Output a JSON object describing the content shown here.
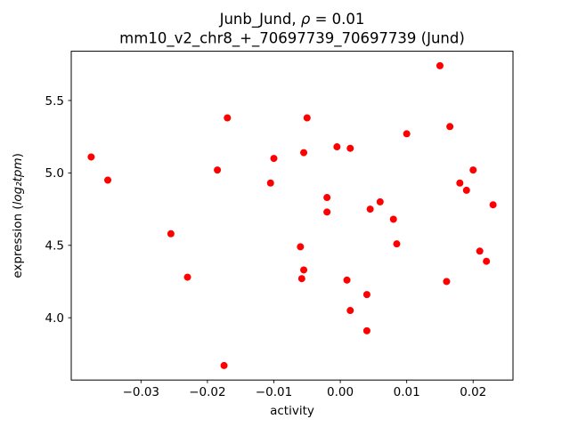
{
  "figure": {
    "title_parts": {
      "prefix": "Junb_Jund, ",
      "rho": "ρ",
      "rest": " = 0.01"
    },
    "ylabel_parts": {
      "prefix": "expression (",
      "math": "log₂tpm",
      "suffix": ")"
    }
  },
  "chart_data": {
    "type": "scatter",
    "title": "Junb_Jund, ρ = 0.01",
    "subtitle": "mm10_v2_chr8_+_70697739_70697739 (Jund)",
    "xlabel": "activity",
    "ylabel": "expression (log2tpm)",
    "marker_color": "#ff0000",
    "marker_size_px": 4,
    "grid": false,
    "legend": "none",
    "xlim": [
      -0.0405,
      0.026
    ],
    "ylim": [
      3.57,
      5.84
    ],
    "xticks": [
      -0.03,
      -0.02,
      -0.01,
      0.0,
      0.01,
      0.02
    ],
    "yticks": [
      4.0,
      4.5,
      5.0,
      5.5
    ],
    "points": [
      [
        -0.0375,
        5.11
      ],
      [
        -0.035,
        4.95
      ],
      [
        -0.0255,
        4.58
      ],
      [
        -0.023,
        4.28
      ],
      [
        -0.0185,
        5.02
      ],
      [
        -0.017,
        5.38
      ],
      [
        -0.0175,
        3.67
      ],
      [
        -0.01,
        5.1
      ],
      [
        -0.0105,
        4.93
      ],
      [
        -0.0055,
        5.14
      ],
      [
        -0.005,
        5.38
      ],
      [
        -0.006,
        4.49
      ],
      [
        -0.0055,
        4.33
      ],
      [
        -0.0058,
        4.27
      ],
      [
        -0.002,
        4.83
      ],
      [
        -0.002,
        4.73
      ],
      [
        -0.0005,
        5.18
      ],
      [
        0.0015,
        5.17
      ],
      [
        0.001,
        4.26
      ],
      [
        0.0015,
        4.05
      ],
      [
        0.004,
        4.16
      ],
      [
        0.004,
        3.91
      ],
      [
        0.0045,
        4.75
      ],
      [
        0.006,
        4.8
      ],
      [
        0.008,
        4.68
      ],
      [
        0.0085,
        4.51
      ],
      [
        0.01,
        5.27
      ],
      [
        0.015,
        5.74
      ],
      [
        0.016,
        4.25
      ],
      [
        0.0165,
        5.32
      ],
      [
        0.018,
        4.93
      ],
      [
        0.019,
        4.88
      ],
      [
        0.02,
        5.02
      ],
      [
        0.021,
        4.46
      ],
      [
        0.022,
        4.39
      ],
      [
        0.023,
        4.78
      ]
    ]
  }
}
